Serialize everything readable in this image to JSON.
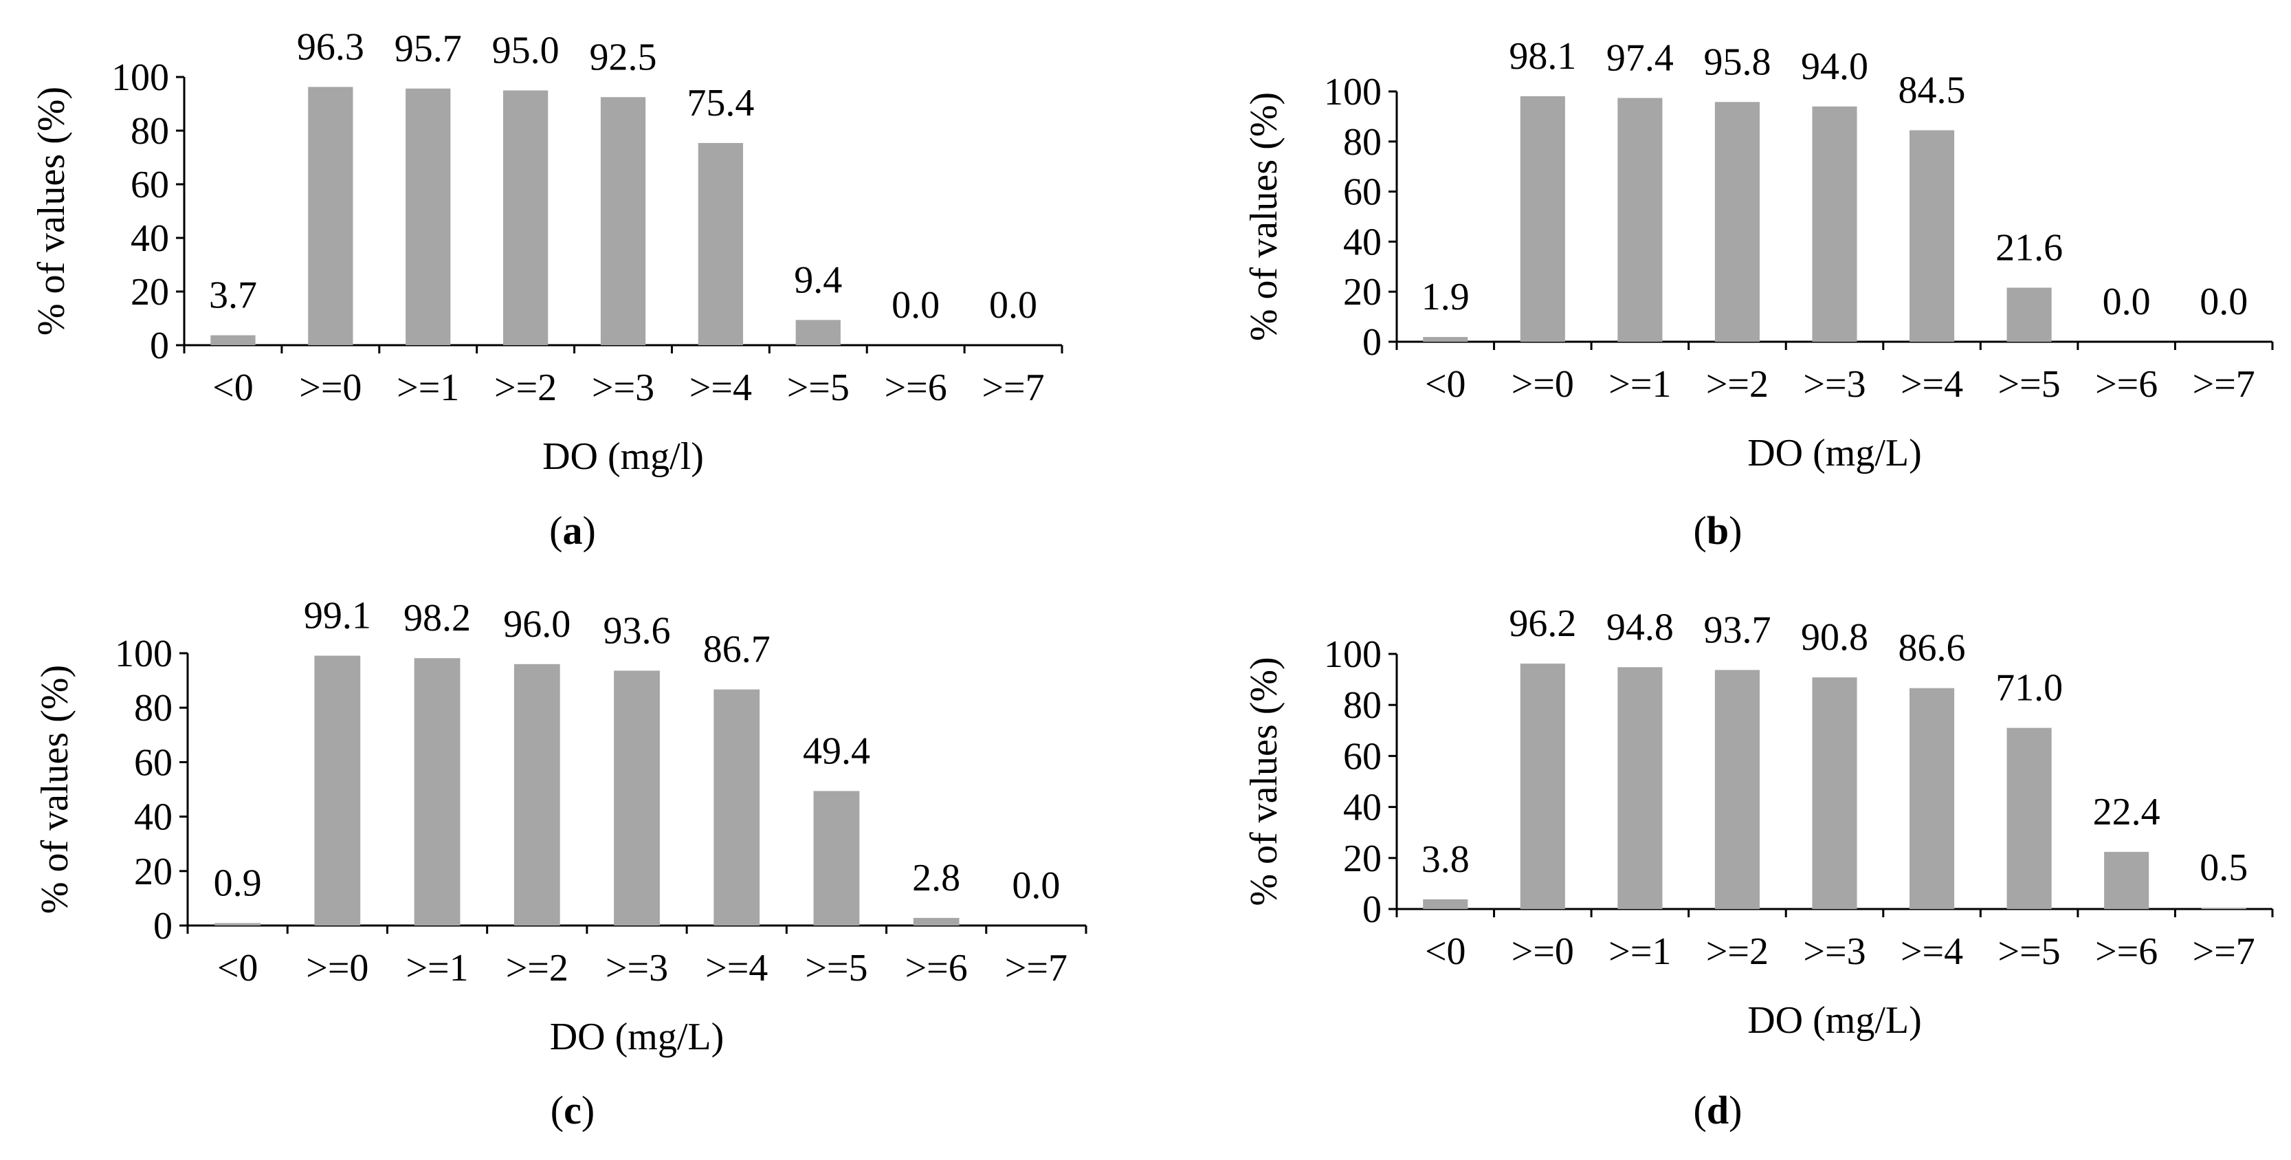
{
  "chart_data": [
    {
      "type": "bar",
      "panel_label": "a",
      "categories": [
        "<0",
        ">=0",
        ">=1",
        ">=2",
        ">=3",
        ">=4",
        ">=5",
        ">=6",
        ">=7"
      ],
      "values": [
        3.7,
        96.3,
        95.7,
        95.0,
        92.5,
        75.4,
        9.4,
        0.0,
        0.0
      ],
      "data_labels": [
        "3.7",
        "96.3",
        "95.7",
        "95.0",
        "92.5",
        "75.4",
        "9.4",
        "0.0",
        "0.0"
      ],
      "xlabel": "DO (mg/l)",
      "ylabel": "% of values (%)",
      "ylim": [
        0,
        100
      ],
      "yticks": [
        0,
        20,
        40,
        60,
        80,
        100
      ],
      "grid": false,
      "bar_color": "#a6a6a6"
    },
    {
      "type": "bar",
      "panel_label": "b",
      "categories": [
        "<0",
        ">=0",
        ">=1",
        ">=2",
        ">=3",
        ">=4",
        ">=5",
        ">=6",
        ">=7"
      ],
      "values": [
        1.9,
        98.1,
        97.4,
        95.8,
        94.0,
        84.5,
        21.6,
        0.0,
        0.0
      ],
      "data_labels": [
        "1.9",
        "98.1",
        "97.4",
        "95.8",
        "94.0",
        "84.5",
        "21.6",
        "0.0",
        "0.0"
      ],
      "xlabel": "DO (mg/L)",
      "ylabel": "% of values (%)",
      "ylim": [
        0,
        100
      ],
      "yticks": [
        0,
        20,
        40,
        60,
        80,
        100
      ],
      "grid": false,
      "bar_color": "#a6a6a6"
    },
    {
      "type": "bar",
      "panel_label": "c",
      "categories": [
        "<0",
        ">=0",
        ">=1",
        ">=2",
        ">=3",
        ">=4",
        ">=5",
        ">=6",
        ">=7"
      ],
      "values": [
        0.9,
        99.1,
        98.2,
        96.0,
        93.6,
        86.7,
        49.4,
        2.8,
        0.0
      ],
      "data_labels": [
        "0.9",
        "99.1",
        "98.2",
        "96.0",
        "93.6",
        "86.7",
        "49.4",
        "2.8",
        "0.0"
      ],
      "xlabel": "DO (mg/L)",
      "ylabel": "% of values (%)",
      "ylim": [
        0,
        100
      ],
      "yticks": [
        0,
        20,
        40,
        60,
        80,
        100
      ],
      "grid": false,
      "bar_color": "#a6a6a6"
    },
    {
      "type": "bar",
      "panel_label": "d",
      "categories": [
        "<0",
        ">=0",
        ">=1",
        ">=2",
        ">=3",
        ">=4",
        ">=5",
        ">=6",
        ">=7"
      ],
      "values": [
        3.8,
        96.2,
        94.8,
        93.7,
        90.8,
        86.6,
        71.0,
        22.4,
        0.5
      ],
      "data_labels": [
        "3.8",
        "96.2",
        "94.8",
        "93.7",
        "90.8",
        "86.6",
        "71.0",
        "22.4",
        "0.5"
      ],
      "xlabel": "DO (mg/L)",
      "ylabel": "% of values (%)",
      "ylim": [
        0,
        100
      ],
      "yticks": [
        0,
        20,
        40,
        60,
        80,
        100
      ],
      "grid": false,
      "bar_color": "#a6a6a6"
    }
  ],
  "captions": [
    {
      "open": "(",
      "label": "a",
      "close": ")"
    },
    {
      "open": "(",
      "label": "b",
      "close": ")"
    },
    {
      "open": "(",
      "label": "c",
      "close": ")"
    },
    {
      "open": "(",
      "label": "d",
      "close": ")"
    }
  ]
}
